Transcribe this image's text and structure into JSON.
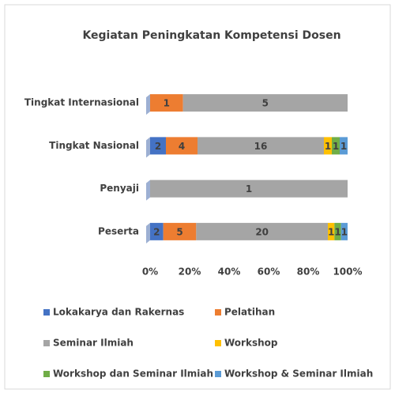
{
  "chart_data": {
    "type": "bar",
    "orientation": "horizontal",
    "stacked": "percent",
    "title": "Kegiatan Peningkatan Kompetensi Dosen",
    "categories": [
      "Tingkat  Internasional",
      "Tingkat Nasional",
      "Penyaji",
      "Peserta"
    ],
    "series": [
      {
        "name": "Lokakarya dan Rakernas",
        "color": "#4472c4",
        "values": [
          null,
          2,
          null,
          2
        ]
      },
      {
        "name": "Pelatihan",
        "color": "#ed7d31",
        "values": [
          1,
          4,
          null,
          5
        ]
      },
      {
        "name": "Seminar Ilmiah",
        "color": "#a5a5a5",
        "values": [
          5,
          16,
          1,
          20
        ]
      },
      {
        "name": "Workshop",
        "color": "#ffc000",
        "values": [
          null,
          1,
          null,
          1
        ]
      },
      {
        "name": "Workshop dan Seminar Ilmiah",
        "color": "#70ad47",
        "values": [
          null,
          1,
          null,
          1
        ]
      },
      {
        "name": "Workshop & Seminar Ilmiah",
        "color": "#5b9bd5",
        "values": [
          null,
          1,
          null,
          1
        ]
      }
    ],
    "xlim": [
      0,
      100
    ],
    "xticks": [
      {
        "value": 0,
        "label": "0%"
      },
      {
        "value": 20,
        "label": "20%"
      },
      {
        "value": 40,
        "label": "40%"
      },
      {
        "value": 60,
        "label": "60%"
      },
      {
        "value": 80,
        "label": "80%"
      },
      {
        "value": 100,
        "label": "100%"
      }
    ],
    "legend": "bottom"
  }
}
